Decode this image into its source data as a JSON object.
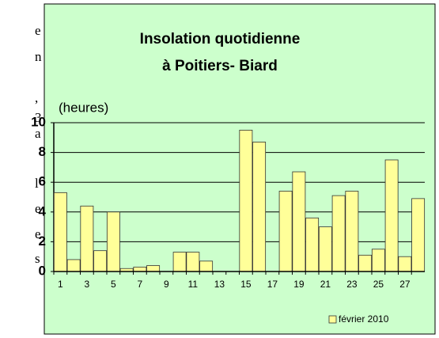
{
  "document_fragments": [
    "e",
    "n",
    ",",
    "3",
    "a",
    "l",
    "e",
    "e",
    "s"
  ],
  "chart_data": {
    "type": "bar",
    "title": [
      "Insolation quotidienne",
      "à Poitiers- Biard"
    ],
    "y_label": "(heures)",
    "categories": [
      "1",
      null,
      "3",
      null,
      "5",
      null,
      "7",
      null,
      "9",
      null,
      "11",
      null,
      "13",
      null,
      "15",
      null,
      "17",
      null,
      "19",
      null,
      "21",
      null,
      "23",
      null,
      "25",
      null,
      "27",
      null
    ],
    "series": [
      {
        "name": "février 2010",
        "color": "#ffff99",
        "values": [
          5.3,
          0.8,
          4.4,
          1.4,
          4.0,
          0.2,
          0.3,
          0.4,
          0,
          1.3,
          1.3,
          0.7,
          0,
          0,
          9.5,
          8.7,
          0,
          5.4,
          6.7,
          3.6,
          3.0,
          5.1,
          5.4,
          1.1,
          1.5,
          7.5,
          1.0,
          4.9
        ]
      }
    ],
    "ylim": [
      0,
      10
    ],
    "yticks": [
      0,
      2,
      4,
      6,
      8,
      10
    ],
    "grid": true,
    "legend": "bottom-right"
  }
}
